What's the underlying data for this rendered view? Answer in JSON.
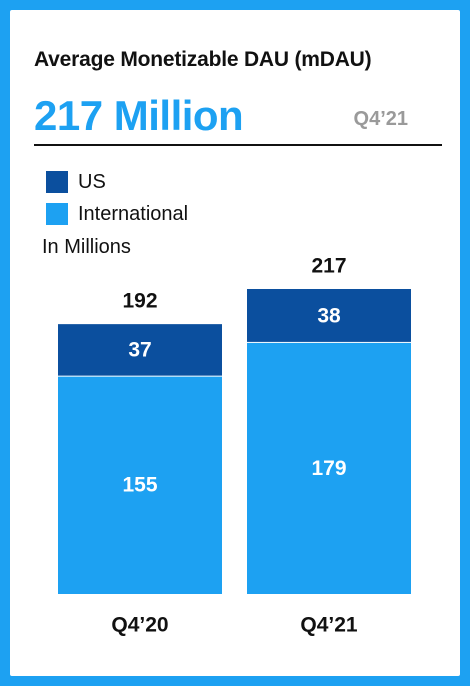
{
  "title": "Average Monetizable DAU (mDAU)",
  "headline": "217 Million",
  "period_label": "Q4’21",
  "unit_label": "In Millions",
  "colors": {
    "us": "#0b4f9e",
    "international": "#1da1f2",
    "background": "#1da1f2"
  },
  "legend": [
    {
      "label": "US",
      "color": "#0b4f9e"
    },
    {
      "label": "International",
      "color": "#1da1f2"
    }
  ],
  "chart_data": {
    "type": "bar",
    "stacked": true,
    "categories": [
      "Q4’20",
      "Q4’21"
    ],
    "series": [
      {
        "name": "International",
        "values": [
          155,
          179
        ],
        "color": "#1da1f2"
      },
      {
        "name": "US",
        "values": [
          37,
          38
        ],
        "color": "#0b4f9e"
      }
    ],
    "totals": [
      192,
      217
    ],
    "ylabel": "In Millions",
    "ylim": [
      0,
      250
    ],
    "grid": false,
    "legend_position": "top-left"
  }
}
